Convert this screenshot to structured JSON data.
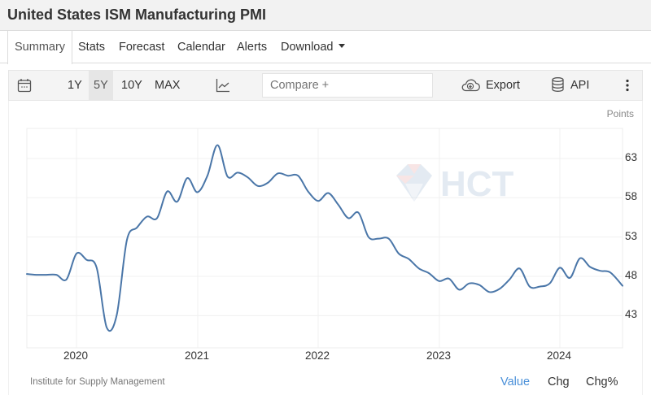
{
  "title": "United States ISM Manufacturing PMI",
  "tabs": [
    {
      "label": "Summary",
      "active": true
    },
    {
      "label": "Stats"
    },
    {
      "label": "Forecast"
    },
    {
      "label": "Calendar"
    },
    {
      "label": "Alerts"
    },
    {
      "label": "Download",
      "dropdown": true
    }
  ],
  "toolbar": {
    "calendar_icon": "calendar-icon",
    "ranges": [
      {
        "label": "1Y"
      },
      {
        "label": "5Y",
        "active": true
      },
      {
        "label": "10Y"
      },
      {
        "label": "MAX"
      }
    ],
    "chart_type_icon": "line-chart-icon",
    "compare_placeholder": "Compare +",
    "export_label": "Export",
    "export_icon": "cloud-download-icon",
    "api_label": "API",
    "api_icon": "database-icon",
    "more_icon": "vertical-ellipsis-icon"
  },
  "chart": {
    "unit_label": "Points",
    "source": "Institute for Supply Management",
    "modes": [
      {
        "label": "Value",
        "active": true
      },
      {
        "label": "Chg"
      },
      {
        "label": "Chg%"
      }
    ],
    "watermark": "HCT",
    "line_color": "#4a76a8",
    "active_mode_color": "#4a90d9"
  },
  "chart_data": {
    "type": "line",
    "title": "United States ISM Manufacturing PMI",
    "xlabel": "",
    "ylabel": "Points",
    "ylim": [
      38.4,
      66.2
    ],
    "yticks": [
      43,
      48,
      53,
      58,
      63
    ],
    "xticks": [
      "2020",
      "2021",
      "2022",
      "2023",
      "2024"
    ],
    "grid": true,
    "legend": "none",
    "x": [
      "2019-08",
      "2019-09",
      "2019-10",
      "2019-11",
      "2019-12",
      "2020-01",
      "2020-02",
      "2020-03",
      "2020-04",
      "2020-05",
      "2020-06",
      "2020-07",
      "2020-08",
      "2020-09",
      "2020-10",
      "2020-11",
      "2020-12",
      "2021-01",
      "2021-02",
      "2021-03",
      "2021-04",
      "2021-05",
      "2021-06",
      "2021-07",
      "2021-08",
      "2021-09",
      "2021-10",
      "2021-11",
      "2021-12",
      "2022-01",
      "2022-02",
      "2022-03",
      "2022-04",
      "2022-05",
      "2022-06",
      "2022-07",
      "2022-08",
      "2022-09",
      "2022-10",
      "2022-11",
      "2022-12",
      "2023-01",
      "2023-02",
      "2023-03",
      "2023-04",
      "2023-05",
      "2023-06",
      "2023-07",
      "2023-08",
      "2023-09",
      "2023-10",
      "2023-11",
      "2023-12",
      "2024-01",
      "2024-02",
      "2024-03",
      "2024-04",
      "2024-05",
      "2024-06",
      "2024-07"
    ],
    "series": [
      {
        "name": "ISM Manufacturing PMI",
        "values": [
          48.3,
          48.2,
          48.2,
          48.2,
          47.6,
          50.9,
          50.1,
          49.1,
          41.5,
          43.1,
          52.6,
          54.2,
          55.6,
          55.4,
          58.8,
          57.5,
          60.5,
          58.7,
          60.8,
          64.7,
          60.7,
          61.2,
          60.6,
          59.5,
          59.9,
          61.1,
          60.8,
          60.8,
          58.8,
          57.6,
          58.6,
          57.1,
          55.4,
          56.1,
          53.0,
          52.8,
          52.8,
          50.9,
          50.2,
          49.0,
          48.4,
          47.4,
          47.7,
          46.3,
          47.1,
          46.9,
          46.0,
          46.4,
          47.6,
          49.0,
          46.7,
          46.7,
          47.1,
          49.1,
          47.8,
          50.3,
          49.2,
          48.7,
          48.5,
          46.8
        ]
      }
    ]
  }
}
